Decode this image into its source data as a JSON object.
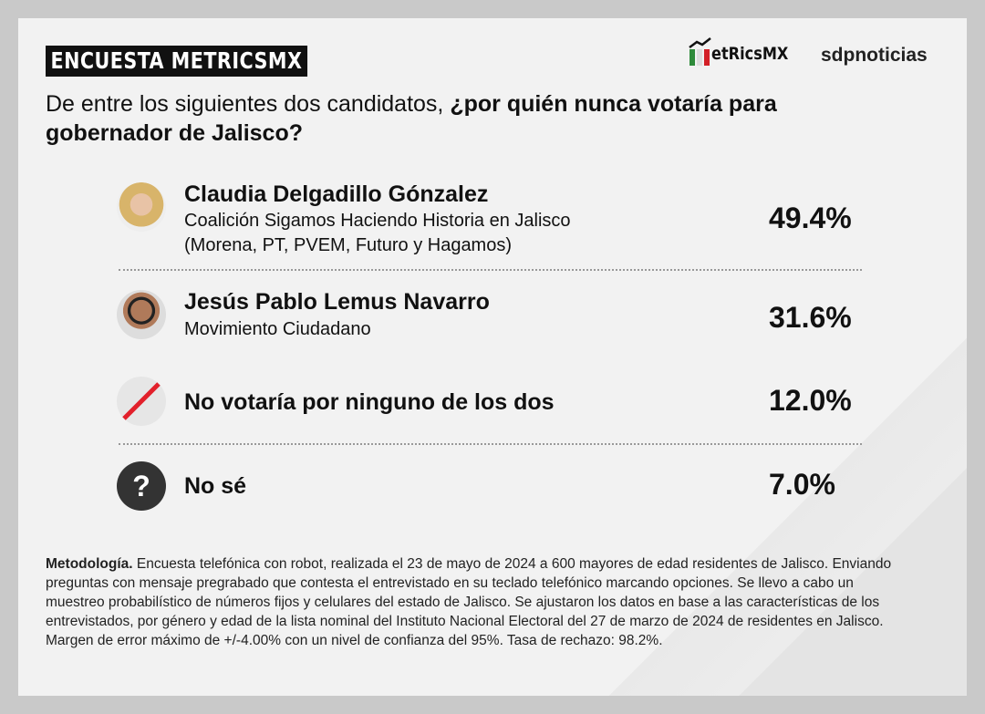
{
  "header": {
    "title": "ENCUESTA METRICSMX",
    "logos": [
      "etRicsMX",
      "sdpnoticias"
    ]
  },
  "question": {
    "lead": "De entre los siguientes dos candidatos, ",
    "emphasis": "¿por quién nunca votaría para gobernador de Jalisco?"
  },
  "rows": [
    {
      "name": "Claudia Delgadillo Gónzalez",
      "party": "Coalición Sigamos Haciendo Historia en Jalisco",
      "detail": "(Morena, PT, PVEM, Futuro y Hagamos)",
      "value": "49.4%"
    },
    {
      "name": "Jesús Pablo Lemus Navarro",
      "party": "Movimiento Ciudadano",
      "value": "31.6%"
    },
    {
      "name": "No votaría por ninguno de los dos",
      "value": "12.0%"
    },
    {
      "icon": "?",
      "name": "No sé",
      "value": "7.0%"
    }
  ],
  "methodology": {
    "label": "Metodología.",
    "text": " Encuesta telefónica con robot, realizada el 23 de mayo de 2024 a 600 mayores de edad residentes de Jalisco. Enviando preguntas con mensaje pregrabado que contesta el entrevistado en su teclado telefónico marcando opciones. Se llevo a cabo un muestreo probabilístico de números fijos y celulares del estado de Jalisco. Se ajustaron los datos en base a las características de los entrevistados, por género y edad de la lista nominal del Instituto Nacional Electoral del 27 de marzo de 2024 de residentes en Jalisco. Margen de error máximo de +/-4.00% con un nivel de confianza del 95%. Tasa de rechazo: 98.2%."
  }
}
